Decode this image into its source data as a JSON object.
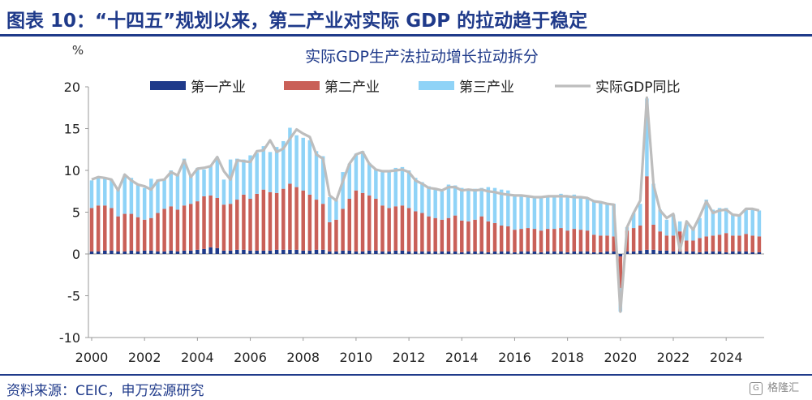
{
  "header": {
    "title": "图表 10：“十四五”规划以来，第二产业对实际 GDP 的拉动趋于稳定"
  },
  "footer": {
    "source": "资料来源：CEIC，申万宏源研究",
    "watermark": "格隆汇"
  },
  "colors": {
    "primary": "#1f3a8a",
    "secondary": "#c96058",
    "tertiary": "#8fd3f7",
    "line": "#bdbdbd",
    "axis": "#1f3a8a"
  },
  "chart_data": {
    "type": "bar",
    "title": "实际GDP生产法拉动增长拉动拆分",
    "ylabel": "%",
    "ylim": [
      -10,
      20
    ],
    "yticks": [
      "20",
      "15",
      "10",
      "5",
      "0",
      "-5",
      "-10"
    ],
    "xticks": [
      "2000",
      "2002",
      "2004",
      "2006",
      "2008",
      "2010",
      "2012",
      "2014",
      "2016",
      "2018",
      "2020",
      "2022",
      "2024"
    ],
    "legend": [
      "第一产业",
      "第二产业",
      "第三产业",
      "实际GDP同比"
    ],
    "legend_position": "top",
    "x_start": "2000Q1",
    "x_end": "2025Q2",
    "series": [
      {
        "name": "第一产业",
        "values": [
          0.3,
          0.3,
          0.4,
          0.4,
          0.3,
          0.3,
          0.4,
          0.3,
          0.4,
          0.4,
          0.3,
          0.3,
          0.4,
          0.3,
          0.4,
          0.4,
          0.5,
          0.6,
          0.8,
          0.7,
          0.4,
          0.4,
          0.5,
          0.5,
          0.4,
          0.4,
          0.4,
          0.4,
          0.5,
          0.5,
          0.5,
          0.5,
          0.4,
          0.4,
          0.5,
          0.5,
          0.3,
          0.3,
          0.4,
          0.4,
          0.3,
          0.3,
          0.4,
          0.4,
          0.3,
          0.3,
          0.4,
          0.4,
          0.3,
          0.3,
          0.3,
          0.3,
          0.3,
          0.3,
          0.3,
          0.3,
          0.2,
          0.3,
          0.3,
          0.3,
          0.2,
          0.3,
          0.3,
          0.3,
          0.2,
          0.3,
          0.3,
          0.3,
          0.2,
          0.3,
          0.3,
          0.3,
          0.2,
          0.3,
          0.3,
          0.3,
          0.2,
          0.2,
          0.3,
          0.3,
          -0.3,
          0.3,
          0.3,
          0.4,
          0.5,
          0.5,
          0.4,
          0.4,
          0.3,
          0.3,
          0.3,
          0.3,
          0.2,
          0.3,
          0.3,
          0.3,
          0.2,
          0.3,
          0.3,
          0.3,
          0.2,
          0.2
        ]
      },
      {
        "name": "第二产业",
        "values": [
          5.2,
          5.5,
          5.4,
          5.1,
          4.2,
          4.5,
          4.4,
          4.1,
          3.7,
          3.9,
          4.6,
          5.1,
          5.3,
          5.0,
          5.4,
          5.6,
          5.8,
          6.3,
          6.2,
          6.0,
          5.5,
          5.6,
          6.0,
          6.6,
          6.2,
          6.8,
          7.3,
          7.0,
          6.8,
          7.3,
          7.9,
          7.5,
          7.2,
          6.7,
          6.0,
          5.5,
          3.5,
          3.8,
          5.0,
          6.2,
          7.3,
          7.0,
          6.6,
          6.2,
          5.5,
          5.2,
          5.3,
          5.4,
          5.2,
          4.8,
          4.6,
          4.2,
          4.0,
          3.8,
          4.0,
          4.3,
          3.8,
          3.6,
          3.8,
          4.2,
          3.7,
          3.4,
          3.1,
          3.0,
          2.7,
          2.7,
          2.8,
          2.7,
          2.6,
          2.7,
          2.7,
          2.8,
          2.6,
          2.7,
          2.6,
          2.5,
          2.1,
          2.0,
          1.9,
          1.8,
          -3.8,
          2.5,
          2.8,
          3.0,
          8.8,
          3.0,
          2.3,
          1.8,
          1.9,
          2.4,
          1.3,
          1.3,
          1.7,
          1.8,
          1.9,
          2.0,
          2.3,
          1.9,
          1.9,
          2.1,
          2.0,
          1.9
        ]
      },
      {
        "name": "第三产业",
        "values": [
          3.3,
          3.3,
          3.2,
          3.4,
          3.2,
          4.7,
          4.3,
          4.0,
          3.8,
          4.7,
          4.0,
          3.5,
          4.3,
          4.3,
          5.6,
          3.5,
          4.0,
          3.2,
          3.6,
          4.9,
          3.0,
          5.3,
          4.9,
          4.2,
          5.2,
          4.9,
          5.2,
          4.8,
          5.5,
          5.7,
          6.7,
          6.2,
          6.3,
          6.5,
          5.8,
          5.7,
          3.0,
          2.3,
          4.4,
          4.2,
          4.4,
          5.0,
          3.9,
          3.5,
          4.1,
          4.4,
          4.6,
          4.6,
          4.5,
          4.0,
          3.7,
          3.6,
          3.5,
          3.4,
          4.0,
          3.6,
          3.9,
          3.9,
          3.7,
          3.4,
          4.1,
          4.2,
          4.3,
          4.3,
          4.0,
          4.0,
          3.8,
          3.8,
          4.1,
          4.0,
          4.0,
          4.1,
          4.1,
          4.1,
          4.0,
          3.9,
          4.0,
          3.9,
          3.8,
          3.9,
          -2.8,
          0.4,
          1.8,
          2.6,
          9.3,
          4.9,
          2.6,
          1.9,
          2.5,
          1.2,
          1.9,
          1.6,
          2.4,
          4.4,
          3.1,
          3.2,
          3.0,
          2.6,
          2.5,
          3.0,
          3.2,
          3.1
        ]
      },
      {
        "name": "实际GDP同比",
        "values": [
          8.9,
          9.2,
          9.1,
          8.9,
          7.6,
          9.5,
          8.8,
          8.3,
          8.1,
          7.7,
          8.8,
          8.9,
          9.8,
          9.4,
          11.2,
          9.2,
          10.2,
          10.3,
          10.5,
          11.6,
          9.9,
          8.9,
          11.2,
          11.1,
          11.0,
          12.3,
          12.4,
          13.6,
          12.2,
          12.6,
          13.8,
          14.9,
          14.4,
          14.0,
          11.9,
          11.4,
          7.0,
          6.4,
          8.7,
          10.8,
          11.9,
          12.2,
          10.8,
          10.1,
          9.9,
          9.9,
          10.0,
          10.1,
          9.8,
          8.8,
          8.4,
          7.9,
          7.8,
          7.6,
          8.0,
          8.0,
          7.6,
          7.7,
          7.6,
          7.7,
          7.5,
          7.4,
          7.2,
          7.1,
          7.0,
          7.0,
          6.9,
          6.8,
          6.8,
          6.9,
          6.9,
          6.9,
          6.9,
          6.8,
          6.8,
          6.7,
          6.3,
          6.2,
          6.0,
          5.9,
          -6.9,
          3.2,
          4.9,
          6.4,
          18.7,
          8.3,
          5.2,
          4.3,
          4.8,
          0.4,
          3.9,
          2.9,
          4.5,
          6.3,
          4.9,
          5.2,
          5.3,
          4.7,
          4.6,
          5.4,
          5.4,
          5.2
        ]
      }
    ]
  }
}
